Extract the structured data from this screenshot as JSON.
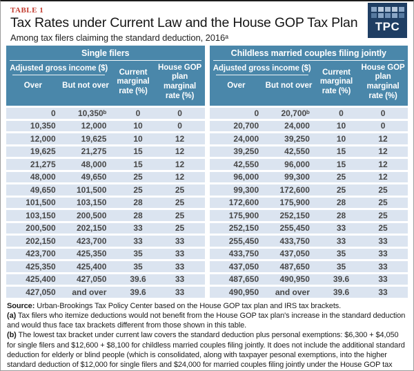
{
  "page": {
    "table_label": "TABLE 1",
    "title": "Tax Rates under Current Law and the House GOP Tax Plan",
    "subtitle": "Among tax filers claiming the standard deduction, 2016ᵃ",
    "logo_text": "TPC"
  },
  "colors": {
    "header_teal": "#4a87aa",
    "row_blue": "#dbe4f0",
    "label_red": "#c23b2e",
    "logo_navy": "#1f3e63"
  },
  "chart_data": {
    "type": "table",
    "title": "Tax Rates under Current Law and the House GOP Tax Plan",
    "subtitle": "Among tax filers claiming the standard deduction, 2016ᵃ",
    "tables": [
      {
        "group_title": "Single filers",
        "agi_header": "Adjusted gross income ($)",
        "col_over": "Over",
        "col_but_not_over": "But not over",
        "col_current": "Current marginal rate (%)",
        "col_gop": "House GOP plan marginal rate (%)",
        "rows": [
          [
            "0",
            "10,350ᵇ",
            "0",
            "0"
          ],
          [
            "10,350",
            "12,000",
            "10",
            "0"
          ],
          [
            "12,000",
            "19,625",
            "10",
            "12"
          ],
          [
            "19,625",
            "21,275",
            "15",
            "12"
          ],
          [
            "21,275",
            "48,000",
            "15",
            "12"
          ],
          [
            "48,000",
            "49,650",
            "25",
            "12"
          ],
          [
            "49,650",
            "101,500",
            "25",
            "25"
          ],
          [
            "101,500",
            "103,150",
            "28",
            "25"
          ],
          [
            "103,150",
            "200,500",
            "28",
            "25"
          ],
          [
            "200,500",
            "202,150",
            "33",
            "25"
          ],
          [
            "202,150",
            "423,700",
            "33",
            "33"
          ],
          [
            "423,700",
            "425,350",
            "35",
            "33"
          ],
          [
            "425,350",
            "425,400",
            "35",
            "33"
          ],
          [
            "425,400",
            "427,050",
            "39.6",
            "33"
          ],
          [
            "427,050",
            "and over",
            "39.6",
            "33"
          ]
        ]
      },
      {
        "group_title": "Childless married couples filing jointly",
        "agi_header": "Adjusted gross income ($)",
        "col_over": "Over",
        "col_but_not_over": "But not over",
        "col_current": "Current marginal rate (%)",
        "col_gop": "House GOP plan marginal rate (%)",
        "rows": [
          [
            "0",
            "20,700ᵇ",
            "0",
            "0"
          ],
          [
            "20,700",
            "24,000",
            "10",
            "0"
          ],
          [
            "24,000",
            "39,250",
            "10",
            "12"
          ],
          [
            "39,250",
            "42,550",
            "15",
            "12"
          ],
          [
            "42,550",
            "96,000",
            "15",
            "12"
          ],
          [
            "96,000",
            "99,300",
            "25",
            "12"
          ],
          [
            "99,300",
            "172,600",
            "25",
            "25"
          ],
          [
            "172,600",
            "175,900",
            "28",
            "25"
          ],
          [
            "175,900",
            "252,150",
            "28",
            "25"
          ],
          [
            "252,150",
            "255,450",
            "33",
            "25"
          ],
          [
            "255,450",
            "433,750",
            "33",
            "33"
          ],
          [
            "433,750",
            "437,050",
            "35",
            "33"
          ],
          [
            "437,050",
            "487,650",
            "35",
            "33"
          ],
          [
            "487,650",
            "490,950",
            "39.6",
            "33"
          ],
          [
            "490,950",
            "and over",
            "39.6",
            "33"
          ]
        ]
      }
    ]
  },
  "footnotes": [
    {
      "lead": "Source:",
      "text": " Urban-Brookings Tax Policy Center based on the House GOP tax plan and IRS tax brackets."
    },
    {
      "lead": "(a)",
      "text": " Tax filers who itemize deductions would not benefit from the House GOP tax plan's increase in the standard deduction and would thus face tax brackets different from those shown in this table."
    },
    {
      "lead": "(b)",
      "text": " The lowest tax bracket under current law covers the standard deduction plus personal exemptions: $6,300 + $4,050 for single filers and $12,600 + $8,100 for childless married couples filing jointly. It does not include the additional standard deduction for elderly or blind people (which is consolidated, along with taxpayer pesonal exemptions, into the higher standard deduction of $12,000 for single filers and $24,000 for married couples filing jointly under the House GOP tax plan)."
    }
  ]
}
